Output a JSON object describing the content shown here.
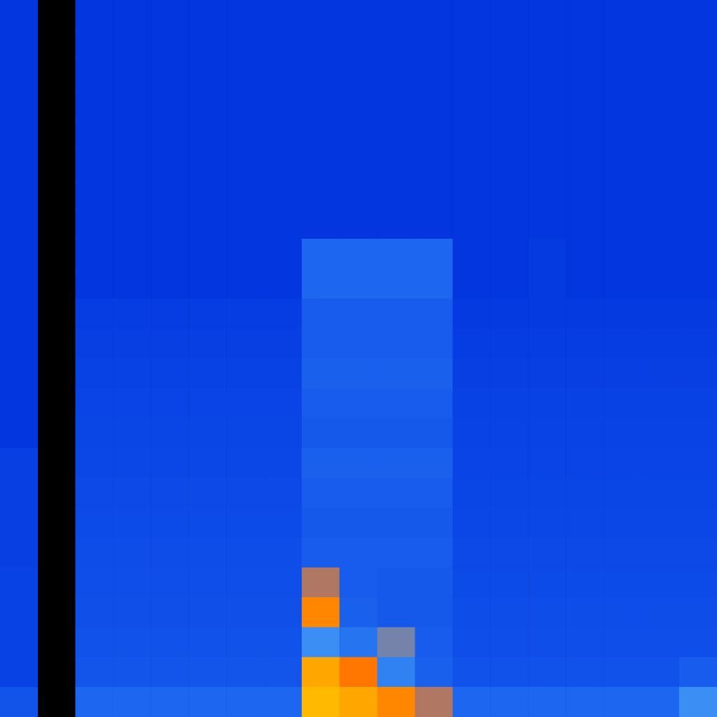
{
  "chart_data": {
    "type": "heatmap",
    "tick_labels": false,
    "zlim": [
      0,
      100
    ],
    "cells": [
      [
        5,
        null,
        5,
        5,
        5,
        5,
        5,
        5,
        5,
        5,
        5,
        5,
        5,
        5,
        5,
        5,
        5,
        5,
        5
      ],
      [
        5,
        null,
        5,
        5,
        5,
        5,
        5,
        5,
        5,
        5,
        5,
        5,
        5,
        5,
        5,
        5,
        5,
        5,
        5
      ],
      [
        5,
        null,
        5,
        5,
        5,
        5,
        5,
        5,
        5,
        5,
        5,
        5,
        5,
        5,
        5,
        5,
        5,
        5,
        5
      ],
      [
        5,
        null,
        5,
        5,
        5,
        5,
        5,
        5,
        5,
        5,
        5,
        5,
        5,
        5,
        5,
        5,
        5,
        5,
        5
      ],
      [
        5,
        null,
        5,
        5,
        5,
        5,
        5,
        5,
        5,
        5,
        5,
        5,
        5,
        5,
        5,
        5,
        5,
        5,
        5
      ],
      [
        5,
        null,
        5,
        5,
        5,
        5,
        5,
        5,
        5,
        5,
        5,
        5,
        5,
        5,
        5,
        5,
        5,
        5,
        5
      ],
      [
        5,
        null,
        5,
        5,
        5,
        5,
        5,
        5,
        5,
        5,
        5,
        5,
        5,
        5,
        5,
        5,
        5,
        5,
        5
      ],
      [
        5,
        null,
        5,
        5,
        5,
        5,
        5,
        5,
        5,
        5,
        5,
        5,
        5,
        5,
        5,
        5,
        5,
        5,
        5
      ],
      [
        5,
        null,
        5,
        5,
        5,
        5,
        5,
        5,
        35,
        35,
        35,
        35,
        5,
        5,
        8,
        5,
        5,
        5,
        5
      ],
      [
        5,
        null,
        5,
        5,
        5,
        5,
        5,
        5,
        35,
        35,
        35,
        35,
        5,
        5,
        8,
        5,
        5,
        5,
        5
      ],
      [
        5,
        null,
        10,
        10,
        10,
        10,
        10,
        10,
        30,
        30,
        30,
        30,
        8,
        8,
        8,
        8,
        8,
        8,
        8
      ],
      [
        5,
        null,
        12,
        12,
        12,
        12,
        12,
        12,
        30,
        30,
        30,
        30,
        10,
        10,
        10,
        10,
        10,
        10,
        10
      ],
      [
        5,
        null,
        14,
        14,
        14,
        14,
        14,
        14,
        32,
        32,
        32,
        32,
        12,
        12,
        12,
        12,
        12,
        12,
        12
      ],
      [
        5,
        null,
        16,
        16,
        16,
        16,
        16,
        16,
        30,
        30,
        30,
        30,
        14,
        14,
        14,
        14,
        14,
        14,
        14
      ],
      [
        5,
        null,
        17,
        17,
        17,
        17,
        17,
        17,
        28,
        28,
        28,
        28,
        15,
        15,
        15,
        15,
        15,
        15,
        15
      ],
      [
        12,
        null,
        18,
        18,
        18,
        18,
        18,
        18,
        32,
        32,
        32,
        32,
        16,
        16,
        16,
        16,
        16,
        16,
        16
      ],
      [
        12,
        null,
        19,
        19,
        19,
        19,
        19,
        19,
        30,
        30,
        30,
        30,
        17,
        17,
        17,
        17,
        17,
        17,
        17
      ],
      [
        12,
        null,
        20,
        20,
        20,
        20,
        20,
        20,
        28,
        28,
        28,
        28,
        18,
        18,
        18,
        18,
        18,
        18,
        18
      ],
      [
        12,
        null,
        21,
        21,
        21,
        21,
        21,
        21,
        30,
        30,
        30,
        30,
        19,
        19,
        19,
        19,
        19,
        19,
        19
      ],
      [
        14,
        null,
        22,
        22,
        22,
        22,
        22,
        22,
        60,
        30,
        28,
        28,
        20,
        20,
        20,
        20,
        20,
        20,
        20
      ],
      [
        14,
        null,
        23,
        23,
        23,
        23,
        23,
        23,
        75,
        32,
        28,
        28,
        21,
        21,
        21,
        21,
        21,
        21,
        21
      ],
      [
        14,
        null,
        24,
        24,
        24,
        24,
        24,
        24,
        50,
        40,
        55,
        30,
        22,
        22,
        22,
        22,
        22,
        22,
        22
      ],
      [
        14,
        null,
        26,
        26,
        26,
        26,
        26,
        26,
        85,
        70,
        45,
        32,
        24,
        24,
        24,
        24,
        24,
        24,
        30
      ],
      [
        25,
        null,
        35,
        35,
        35,
        35,
        35,
        35,
        95,
        85,
        75,
        60,
        35,
        35,
        35,
        35,
        35,
        35,
        50
      ]
    ]
  }
}
